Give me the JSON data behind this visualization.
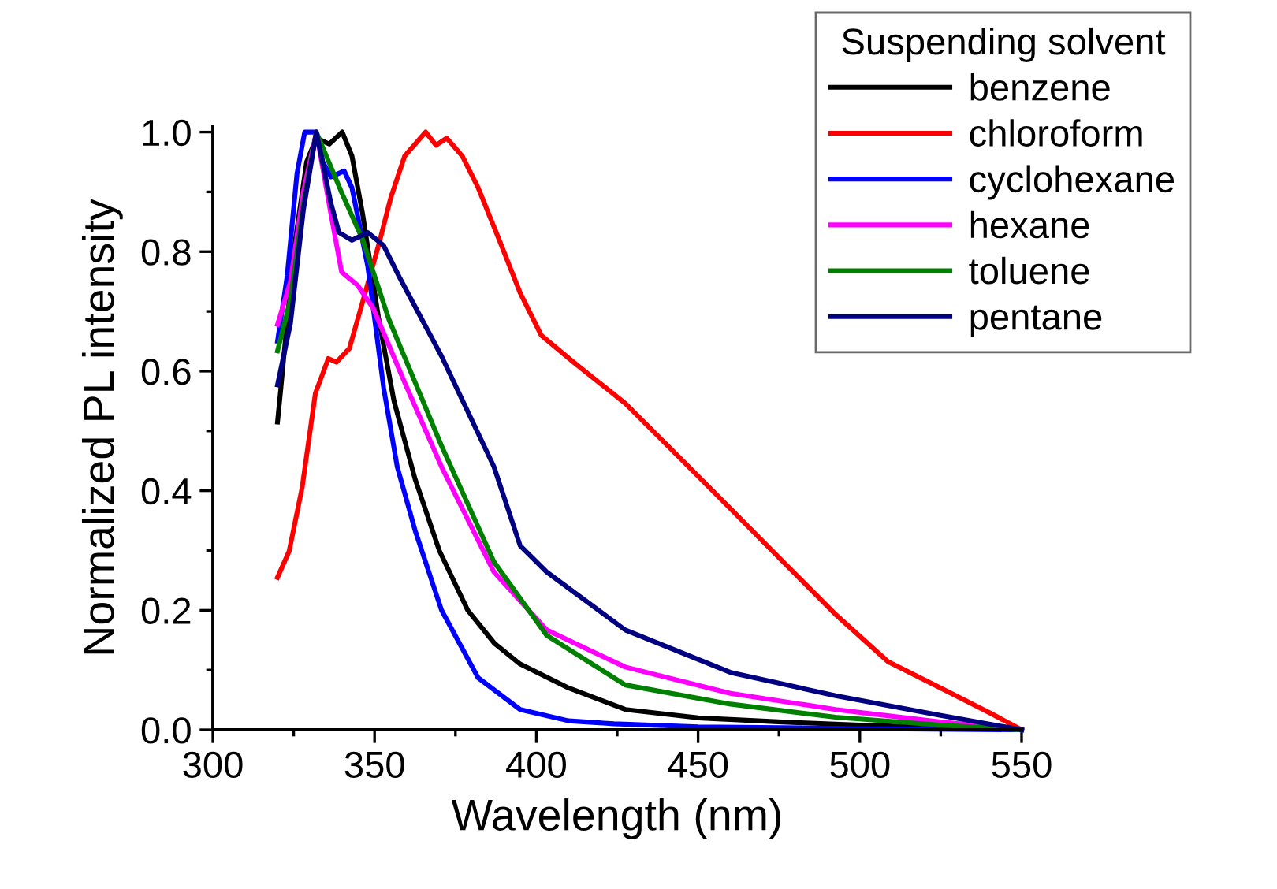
{
  "chart_data": {
    "type": "line",
    "xlabel": "Wavelength (nm)",
    "ylabel": "Normalized PL intensity",
    "legend_title": "Suspending solvent",
    "legend": "top right",
    "grid": false,
    "marker": "none",
    "line_style": "solid",
    "xlim": [
      300,
      550
    ],
    "xticks": [
      300,
      350,
      400,
      450,
      500,
      550
    ],
    "ylim": [
      0,
      1.01
    ],
    "yticks": [
      {
        "value": 0,
        "label": "0.0"
      },
      0.2,
      0.4,
      0.6,
      0.8,
      {
        "value": 1.0,
        "label": "1.0"
      }
    ],
    "series": [
      {
        "name": "benzene",
        "color": "#000000",
        "x": [
          320,
          321,
          325,
          329,
          332,
          336,
          340,
          343,
          346.3,
          351.2,
          356,
          362.5,
          370,
          378.8,
          387,
          395,
          410,
          427.5,
          450,
          476,
          500,
          525,
          550
        ],
        "values": [
          0.515,
          0.57,
          0.8,
          0.95,
          0.99,
          0.98,
          1.0,
          0.96,
          0.863,
          0.69,
          0.55,
          0.42,
          0.3,
          0.2,
          0.145,
          0.11,
          0.07,
          0.034,
          0.02,
          0.013,
          0.008,
          0.004,
          0.0
        ]
      },
      {
        "name": "chloroform",
        "color": "#ff0000",
        "x": [
          320,
          323.6,
          327.6,
          331.7,
          335.7,
          338.2,
          342.2,
          346,
          351.2,
          355,
          359.3,
          365.8,
          369,
          372.3,
          377.1,
          382,
          388.5,
          395,
          401.5,
          411.3,
          427.5,
          443.8,
          460,
          476.3,
          492.5,
          508.7,
          525,
          541,
          550
        ],
        "values": [
          0.255,
          0.299,
          0.405,
          0.563,
          0.621,
          0.615,
          0.638,
          0.71,
          0.81,
          0.89,
          0.96,
          1.0,
          0.978,
          0.99,
          0.96,
          0.907,
          0.82,
          0.731,
          0.66,
          0.616,
          0.546,
          0.458,
          0.37,
          0.281,
          0.193,
          0.114,
          0.07,
          0.026,
          0.0
        ]
      },
      {
        "name": "cyclohexane",
        "color": "#0000ff",
        "x": [
          320,
          323,
          326,
          328.4,
          332,
          334,
          336.5,
          340.6,
          343,
          347.9,
          352.8,
          357,
          362.5,
          370.7,
          382,
          395,
          410,
          424,
          450,
          500,
          550
        ],
        "values": [
          0.65,
          0.76,
          0.93,
          1.0,
          1.0,
          0.95,
          0.925,
          0.935,
          0.907,
          0.775,
          0.572,
          0.44,
          0.334,
          0.2,
          0.087,
          0.034,
          0.015,
          0.01,
          0.005,
          0.002,
          0.0
        ]
      },
      {
        "name": "hexane",
        "color": "#ff00ff",
        "x": [
          320,
          324,
          328,
          332,
          336.5,
          339.8,
          344.7,
          349.6,
          359.3,
          370.7,
          386.9,
          403.2,
          427.5,
          460,
          492.5,
          525,
          550
        ],
        "values": [
          0.678,
          0.75,
          0.9,
          1.0,
          0.863,
          0.766,
          0.744,
          0.705,
          0.581,
          0.44,
          0.264,
          0.167,
          0.105,
          0.061,
          0.034,
          0.013,
          0.0
        ]
      },
      {
        "name": "toluene",
        "color": "#008000",
        "x": [
          320,
          324,
          328,
          332,
          339.8,
          346.3,
          354.4,
          370.7,
          386.9,
          403.2,
          427.5,
          460,
          492.5,
          525,
          550
        ],
        "values": [
          0.634,
          0.72,
          0.88,
          1.0,
          0.899,
          0.82,
          0.687,
          0.475,
          0.281,
          0.158,
          0.075,
          0.043,
          0.021,
          0.008,
          0.0
        ]
      },
      {
        "name": "pentane",
        "color": "#000080",
        "x": [
          320,
          324,
          328,
          332,
          336.5,
          339,
          343,
          347.9,
          352.8,
          357.7,
          370.7,
          386.9,
          395,
          403.2,
          427.5,
          460,
          492.5,
          525,
          550
        ],
        "values": [
          0.577,
          0.68,
          0.87,
          1.0,
          0.881,
          0.832,
          0.819,
          0.832,
          0.81,
          0.757,
          0.625,
          0.44,
          0.308,
          0.264,
          0.167,
          0.096,
          0.057,
          0.024,
          0.0
        ]
      }
    ]
  }
}
